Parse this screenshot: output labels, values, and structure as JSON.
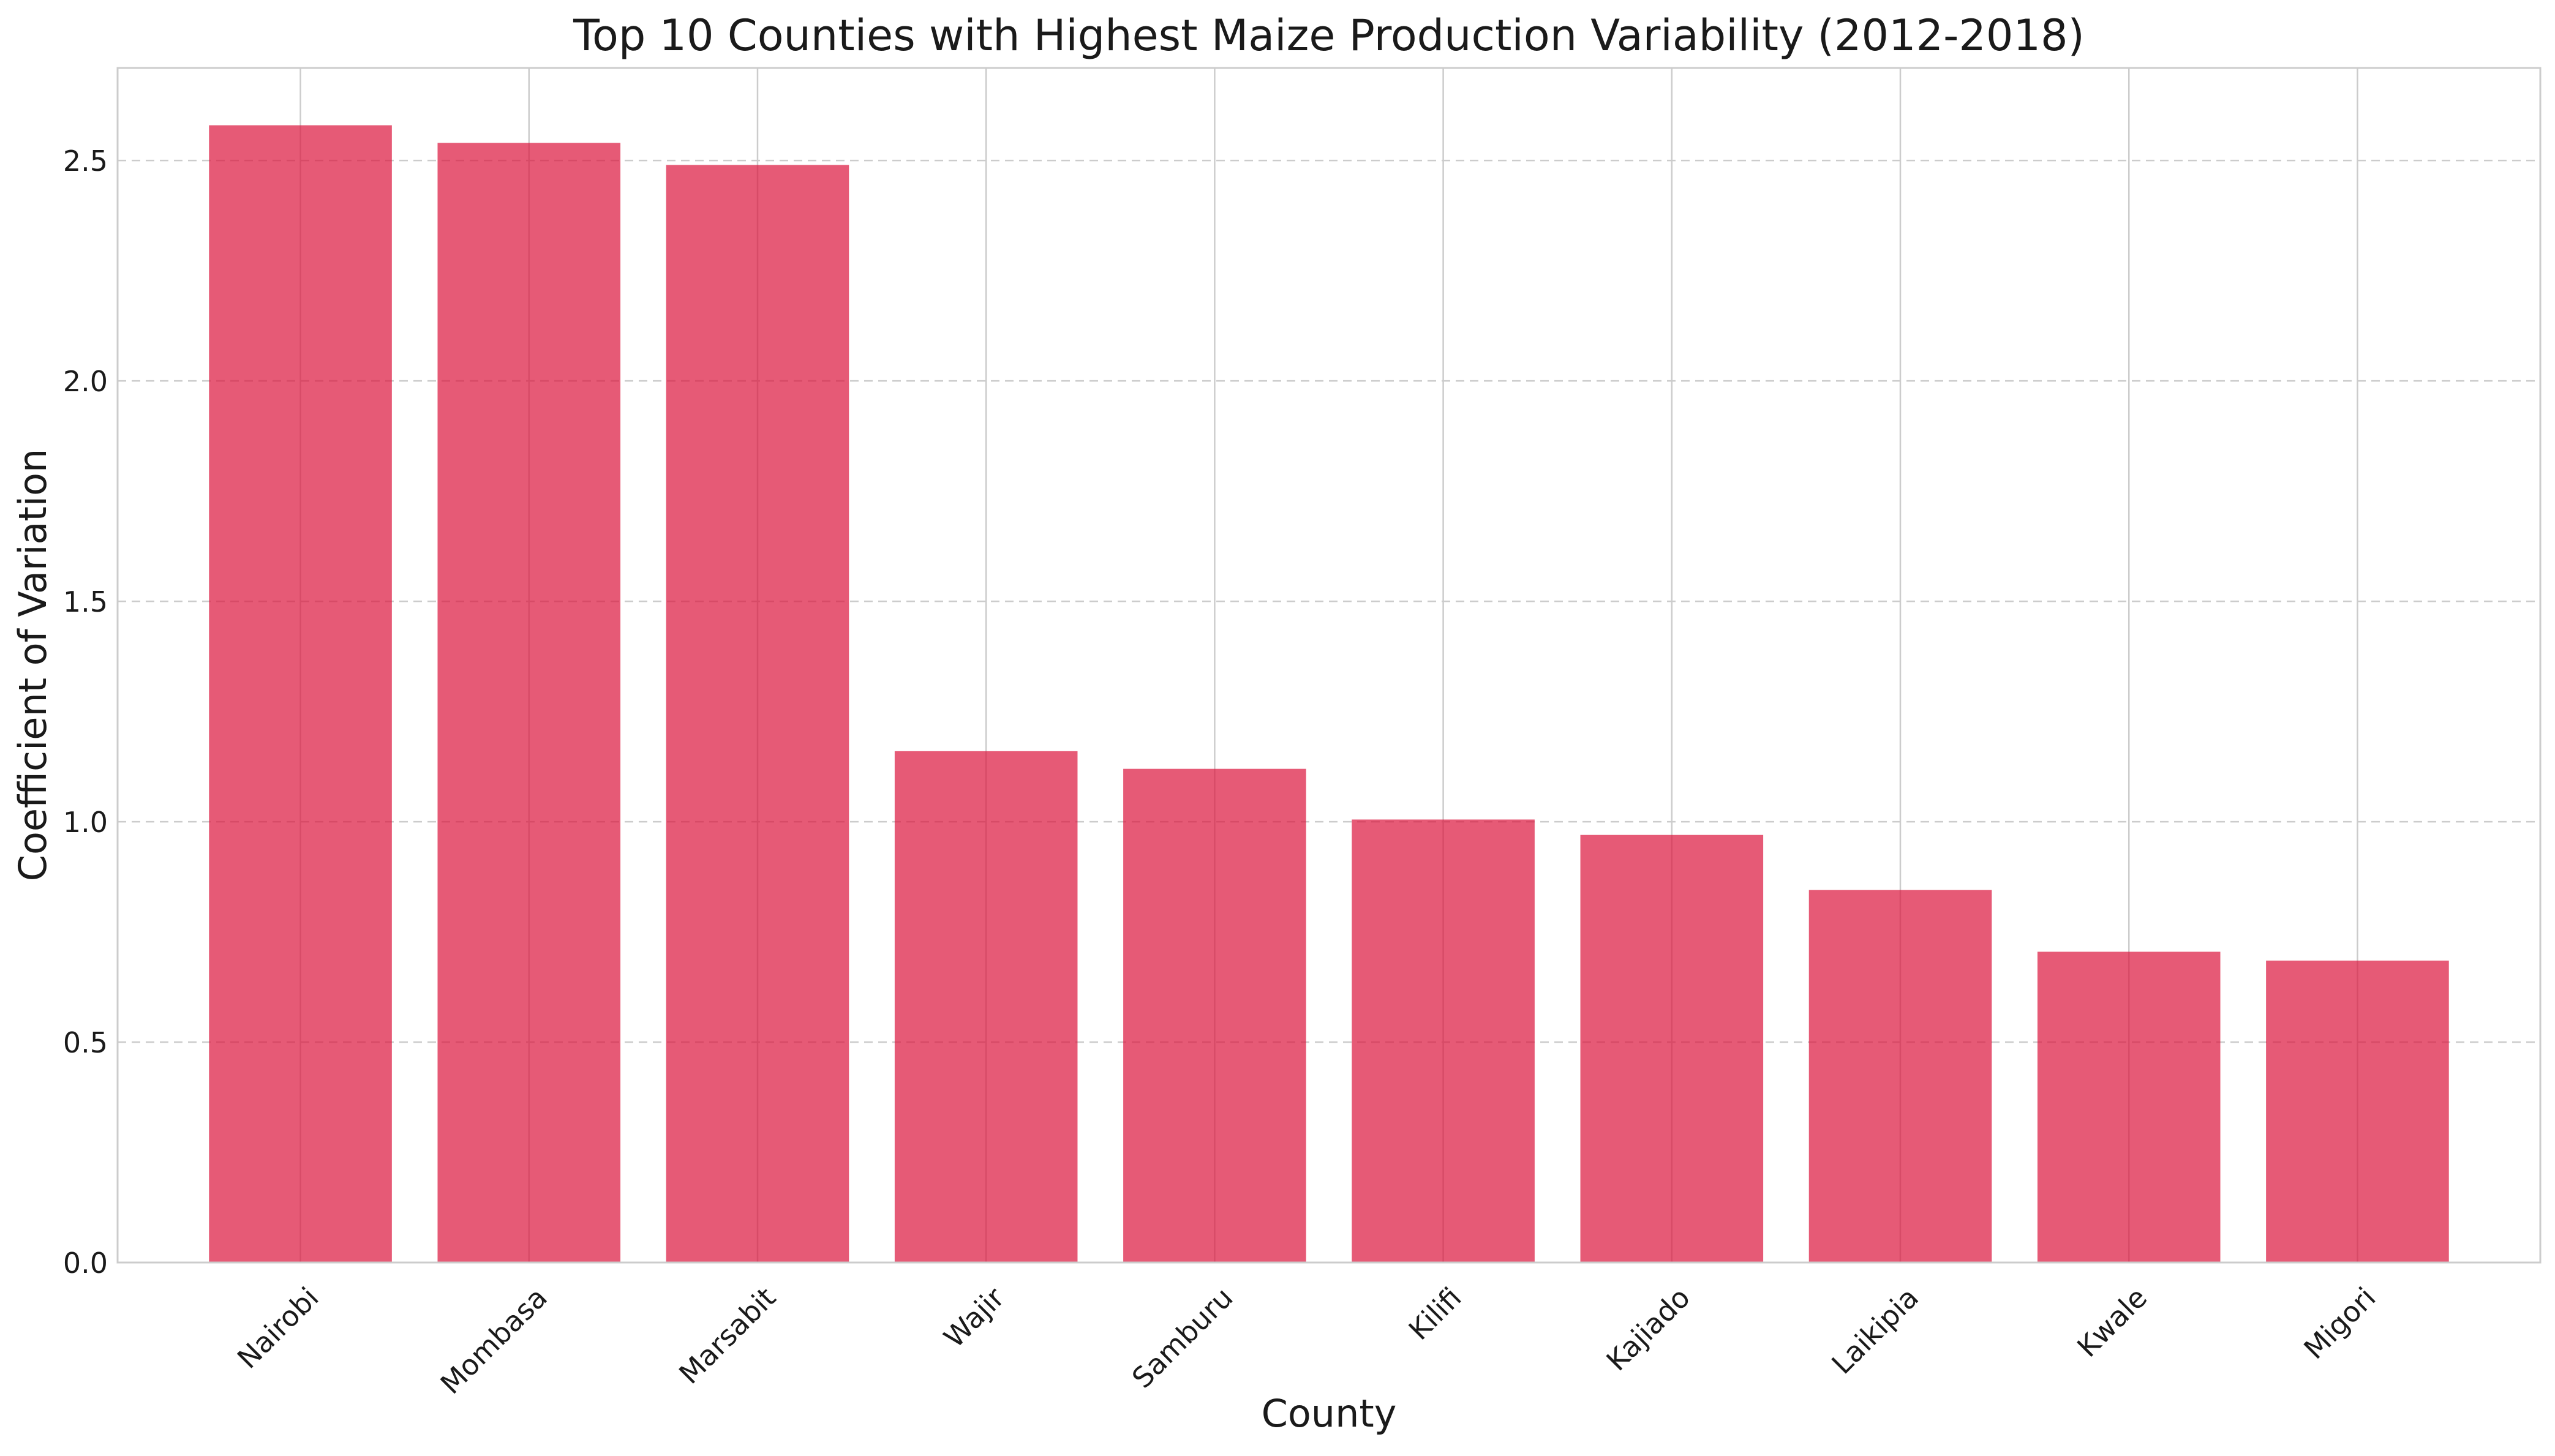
{
  "chart_data": {
    "type": "bar",
    "title": "Top 10 Counties with Highest Maize Production Variability (2012-2018)",
    "xlabel": "County",
    "ylabel": "Coefficient of Variation",
    "categories": [
      "Nairobi",
      "Mombasa",
      "Marsabit",
      "Wajir",
      "Samburu",
      "Kilifi",
      "Kajiado",
      "Laikipia",
      "Kwale",
      "Migori"
    ],
    "values": [
      2.58,
      2.54,
      2.49,
      1.16,
      1.12,
      1.005,
      0.97,
      0.845,
      0.705,
      0.685
    ],
    "ylim": [
      0,
      2.71
    ],
    "yticks": [
      "0.0",
      "0.5",
      "1.0",
      "1.5",
      "2.0",
      "2.5"
    ],
    "grid": true,
    "colors": {
      "bar": "#dc143c",
      "bar_opacity": 0.7,
      "grid": "#cccccc",
      "axis": "#cccccc"
    }
  }
}
